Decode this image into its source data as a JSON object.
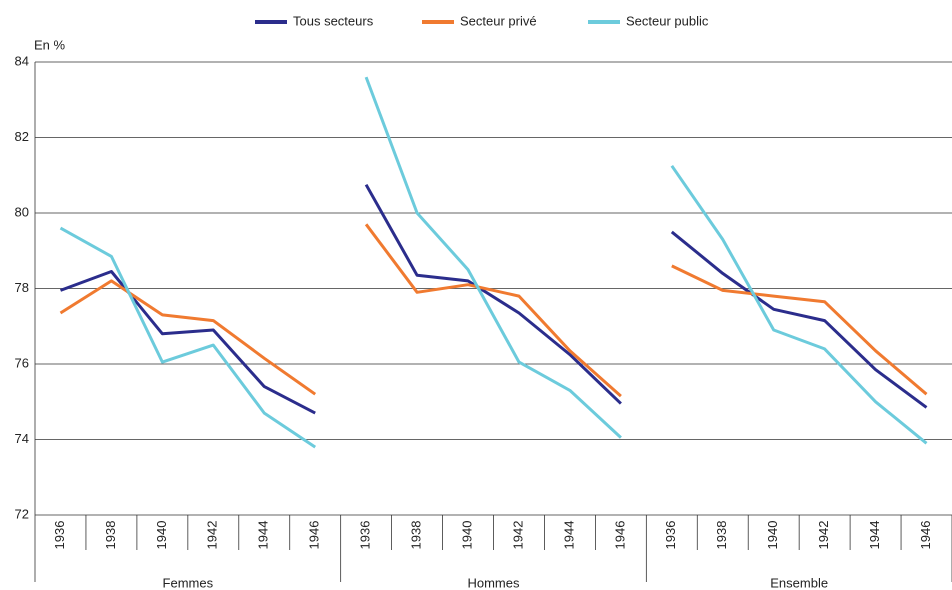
{
  "chart_data": {
    "type": "line",
    "y_label": "En %",
    "ylim": [
      72,
      84
    ],
    "yticks": [
      72,
      74,
      76,
      78,
      80,
      82,
      84
    ],
    "grid": true,
    "groups": [
      {
        "name": "Femmes",
        "categories": [
          "1936",
          "1938",
          "1940",
          "1942",
          "1944",
          "1946"
        ]
      },
      {
        "name": "Hommes",
        "categories": [
          "1936",
          "1938",
          "1940",
          "1942",
          "1944",
          "1946"
        ]
      },
      {
        "name": "Ensemble",
        "categories": [
          "1936",
          "1938",
          "1940",
          "1942",
          "1944",
          "1946"
        ]
      }
    ],
    "series": [
      {
        "name": "Tous secteurs",
        "color": "#2b2d8c",
        "values": [
          [
            77.95,
            78.45,
            76.8,
            76.9,
            75.4,
            74.7
          ],
          [
            80.75,
            78.35,
            78.2,
            77.35,
            76.25,
            74.95
          ],
          [
            79.5,
            78.4,
            77.45,
            77.15,
            75.85,
            74.85
          ]
        ]
      },
      {
        "name": "Secteur privé",
        "color": "#f07a30",
        "values": [
          [
            77.35,
            78.2,
            77.3,
            77.15,
            76.15,
            75.2
          ],
          [
            79.7,
            77.9,
            78.1,
            77.8,
            76.35,
            75.15
          ],
          [
            78.6,
            77.95,
            77.8,
            77.65,
            76.35,
            75.2
          ]
        ]
      },
      {
        "name": "Secteur public",
        "color": "#6ccbdc",
        "values": [
          [
            79.6,
            78.85,
            76.05,
            76.5,
            74.7,
            73.8
          ],
          [
            83.6,
            80.0,
            78.5,
            76.05,
            75.3,
            74.05
          ],
          [
            81.25,
            79.3,
            76.9,
            76.4,
            75.0,
            73.9
          ]
        ]
      }
    ]
  }
}
